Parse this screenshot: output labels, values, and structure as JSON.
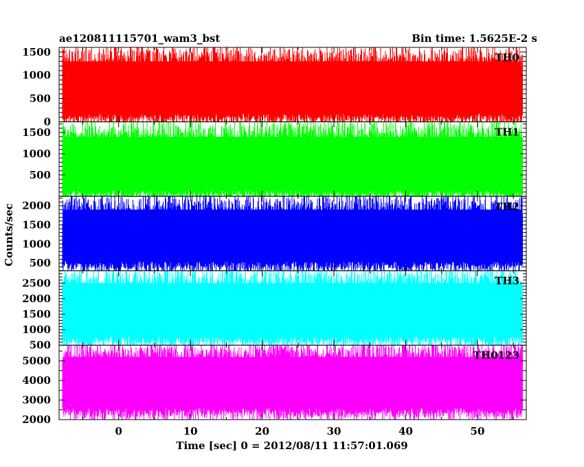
{
  "chart_data": {
    "type": "line",
    "title_left": "ae120811115701_wam3_bst",
    "title_right": "Bin time: 1.5625E-2 s",
    "xlabel": "Time [sec] 0 = 2012/08/11 11:57:01.069",
    "ylabel": "Counts/sec",
    "xlim": [
      -8.3,
      56.8
    ],
    "x_data_range": [
      -7.8,
      56.2
    ],
    "bin_time": 0.015625,
    "x_ticks": [
      0,
      10,
      20,
      30,
      40,
      50
    ],
    "x_tick_labels": [
      "0",
      "10",
      "20",
      "30",
      "40",
      "50"
    ],
    "grid": false,
    "panels": [
      {
        "name": "TH0",
        "color": "#ff0000",
        "ylim": [
          0,
          1600
        ],
        "y_ticks": [
          0,
          500,
          1000,
          1500
        ],
        "y_tick_labels": [
          "0",
          "500",
          "1000",
          "1500"
        ],
        "typical_low": 180,
        "typical_high": 1300,
        "min": 0,
        "max": 1600
      },
      {
        "name": "TH1",
        "color": "#00ff00",
        "ylim": [
          0,
          1750
        ],
        "y_ticks": [
          500,
          1000,
          1500
        ],
        "y_tick_labels": [
          "500",
          "1000",
          "1500"
        ],
        "typical_low": 150,
        "typical_high": 1400,
        "min": 0,
        "max": 1750
      },
      {
        "name": "TH2",
        "color": "#0000ff",
        "ylim": [
          300,
          2250
        ],
        "y_ticks": [
          500,
          1000,
          1500,
          2000
        ],
        "y_tick_labels": [
          "500",
          "1000",
          "1500",
          "2000"
        ],
        "typical_low": 550,
        "typical_high": 1900,
        "min": 300,
        "max": 2250
      },
      {
        "name": "TH3",
        "color": "#00ffff",
        "ylim": [
          500,
          2900
        ],
        "y_ticks": [
          500,
          1000,
          1500,
          2000,
          2500
        ],
        "y_tick_labels": [
          "500",
          "1000",
          "1500",
          "2000",
          "2500"
        ],
        "typical_low": 800,
        "typical_high": 2500,
        "min": 500,
        "max": 2900
      },
      {
        "name": "TH0123",
        "color": "#ff00ff",
        "ylim": [
          2000,
          5800
        ],
        "y_ticks": [
          2000,
          3000,
          4000,
          5000
        ],
        "y_tick_labels": [
          "2000",
          "3000",
          "4000",
          "5000"
        ],
        "typical_low": 2600,
        "typical_high": 5200,
        "min": 2000,
        "max": 5800
      }
    ]
  }
}
